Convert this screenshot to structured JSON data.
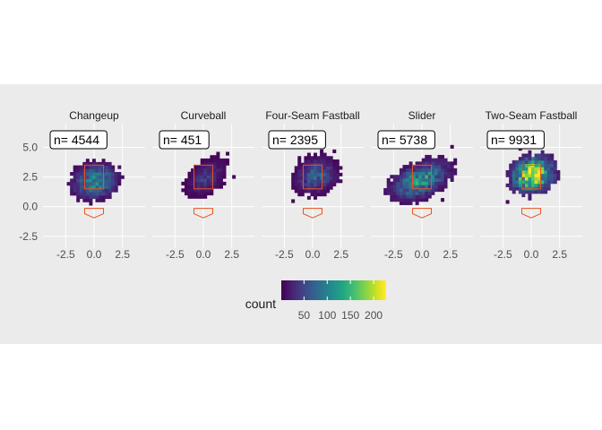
{
  "chart_data": {
    "type": "heatmap",
    "subtype": "faceted 2D histogram (hexbin-like) of pitch locations",
    "facets": [
      {
        "label": "Changeup",
        "n_label": "n= 4544",
        "n": 4544,
        "center": [
          0.0,
          2.0
        ],
        "spread": [
          1.1,
          0.8
        ],
        "peak_count": 110
      },
      {
        "label": "Curveball",
        "n_label": "n= 451",
        "n": 451,
        "center": [
          0.1,
          2.3
        ],
        "spread": [
          0.9,
          0.8
        ],
        "peak_count": 40
      },
      {
        "label": "Four-Seam Fastball",
        "n_label": "n= 2395",
        "n": 2395,
        "center": [
          0.2,
          2.5
        ],
        "spread": [
          1.0,
          0.8
        ],
        "peak_count": 70
      },
      {
        "label": "Slider",
        "n_label": "n= 5738",
        "n": 5738,
        "center": [
          -0.3,
          2.1
        ],
        "spread": [
          1.4,
          0.9
        ],
        "peak_count": 120
      },
      {
        "label": "Two-Seam Fastball",
        "n_label": "n= 9931",
        "n": 9931,
        "center": [
          0.0,
          2.6
        ],
        "spread": [
          1.05,
          0.85
        ],
        "peak_count": 220
      }
    ],
    "x_ticks": [
      "-2.5",
      "0.0",
      "2.5"
    ],
    "y_ticks": [
      "5.0",
      "2.5",
      "0.0",
      "-2.5"
    ],
    "xlim": [
      -4.5,
      4.5
    ],
    "ylim": [
      -3.5,
      7
    ],
    "strike_zone": {
      "x": [
        -0.83,
        0.83
      ],
      "y": [
        1.5,
        3.5
      ]
    },
    "home_plate": {
      "points": [
        [
          -0.83,
          -0.15
        ],
        [
          0.83,
          -0.15
        ],
        [
          0.83,
          -0.6
        ],
        [
          0,
          -0.95
        ],
        [
          -0.83,
          -0.6
        ]
      ]
    },
    "legend": {
      "title": "count",
      "ticks": [
        "50",
        "100",
        "150",
        "200"
      ],
      "tick_values": [
        50,
        100,
        150,
        200
      ],
      "range": [
        1,
        225
      ],
      "colormap": "viridis",
      "position": "bottom"
    },
    "colors": {
      "panel_background": "#ebebeb",
      "grid": "#ffffff",
      "zone_outline": "#e8541e",
      "label_box_fill": "#ffffff",
      "label_box_stroke": "#000000"
    }
  }
}
